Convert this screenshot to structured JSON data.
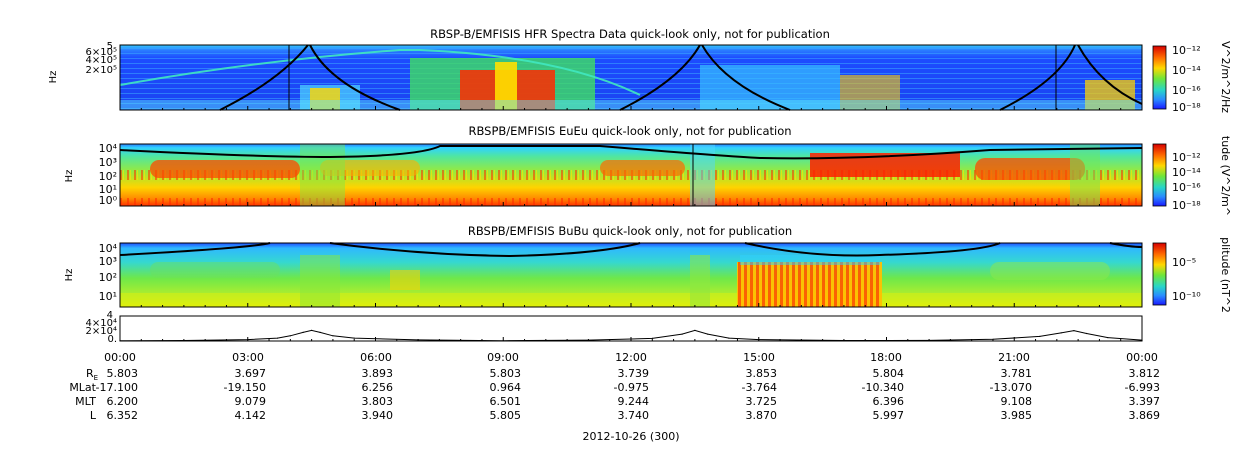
{
  "chart_data": [
    {
      "type": "heatmap",
      "title": "RBSP-B/EMFISIS  HFR Spectra Data quick-look only, not for publication",
      "ylabel": "Hz",
      "yticks": [
        "6×10⁵",
        "4×10⁵",
        "2×10⁵"
      ],
      "ytick_values": [
        600000,
        400000,
        200000
      ],
      "ytop_exponent": "5",
      "colorbar": {
        "label": "V^2/m^2/Hz",
        "ticks": [
          "10⁻¹²",
          "10⁻¹⁴",
          "10⁻¹⁶",
          "10⁻¹⁸"
        ],
        "tick_values": [
          -12,
          -14,
          -16,
          -18
        ]
      },
      "overlay_line_color": "#000000"
    },
    {
      "type": "heatmap",
      "title": "RBSPB/EMFISIS  EuEu quick-look only, not for publication",
      "ylabel": "Hz",
      "yscale": "log",
      "yticks": [
        "10⁴",
        "10³",
        "10²",
        "10¹",
        "10⁰"
      ],
      "colorbar": {
        "label": "tude (V^2/m^",
        "ticks": [
          "10⁻¹²",
          "10⁻¹⁴",
          "10⁻¹⁶",
          "10⁻¹⁸"
        ],
        "tick_values": [
          -12,
          -14,
          -16,
          -18
        ]
      }
    },
    {
      "type": "heatmap",
      "title": "RBSPB/EMFISIS  BuBu quick-look only, not for publication",
      "ylabel": "Hz",
      "yscale": "log",
      "yticks": [
        "10⁴",
        "10³",
        "10²",
        "10¹"
      ],
      "colorbar": {
        "label": "plitude (nT^2",
        "ticks": [
          "10⁻⁵",
          "10⁻¹⁰"
        ],
        "tick_values": [
          -5,
          -10
        ]
      }
    },
    {
      "type": "line",
      "title": "",
      "yticks": [
        "4×10⁴",
        "2×10⁴",
        "0."
      ],
      "ytick_values": [
        40000,
        20000,
        0
      ],
      "ytop_exponent": "4",
      "ylim": [
        0,
        40000
      ],
      "x": [
        0,
        1.5,
        3,
        3.7,
        4.0,
        4.3,
        4.5,
        4.7,
        5.0,
        5.5,
        7,
        9,
        11,
        12.5,
        13.2,
        13.5,
        13.8,
        14.3,
        15,
        17,
        19,
        20.5,
        21.6,
        22.1,
        22.4,
        22.7,
        23.2,
        24
      ],
      "values": [
        300,
        900,
        2500,
        5000,
        9000,
        15000,
        18500,
        15000,
        9000,
        5000,
        2000,
        500,
        1500,
        4500,
        12000,
        18500,
        12000,
        5000,
        2500,
        800,
        1000,
        3000,
        8000,
        14000,
        18000,
        13000,
        6000,
        1500
      ]
    }
  ],
  "time_axis": {
    "tick_labels": [
      "00:00",
      "03:00",
      "06:00",
      "09:00",
      "12:00",
      "15:00",
      "18:00",
      "21:00",
      "00:00"
    ],
    "date_label": "2012-10-26 (300)"
  },
  "ephemeris": {
    "rows": [
      {
        "label": "R",
        "label_sub": "E",
        "values": [
          "5.803",
          "3.697",
          "3.893",
          "5.803",
          "3.739",
          "3.853",
          "5.804",
          "3.781",
          "3.812"
        ]
      },
      {
        "label": "MLat",
        "label_sub": "",
        "values": [
          "-17.100",
          "-19.150",
          "6.256",
          "0.964",
          "-0.975",
          "-3.764",
          "-10.340",
          "-13.070",
          "-6.993"
        ]
      },
      {
        "label": "MLT",
        "label_sub": "",
        "values": [
          "6.200",
          "9.079",
          "3.803",
          "6.501",
          "9.244",
          "3.725",
          "6.396",
          "9.108",
          "3.397"
        ]
      },
      {
        "label": "L",
        "label_sub": "",
        "values": [
          "6.352",
          "4.142",
          "3.940",
          "5.805",
          "3.740",
          "3.870",
          "5.997",
          "3.985",
          "3.869"
        ]
      }
    ]
  },
  "colors": {
    "spectrogram_background": "#1f55ff",
    "high_intensity": "#ff2a00",
    "mid_intensity": "#ffe400",
    "green_band": "#46e23e",
    "cyan_band": "#38c8ff"
  }
}
